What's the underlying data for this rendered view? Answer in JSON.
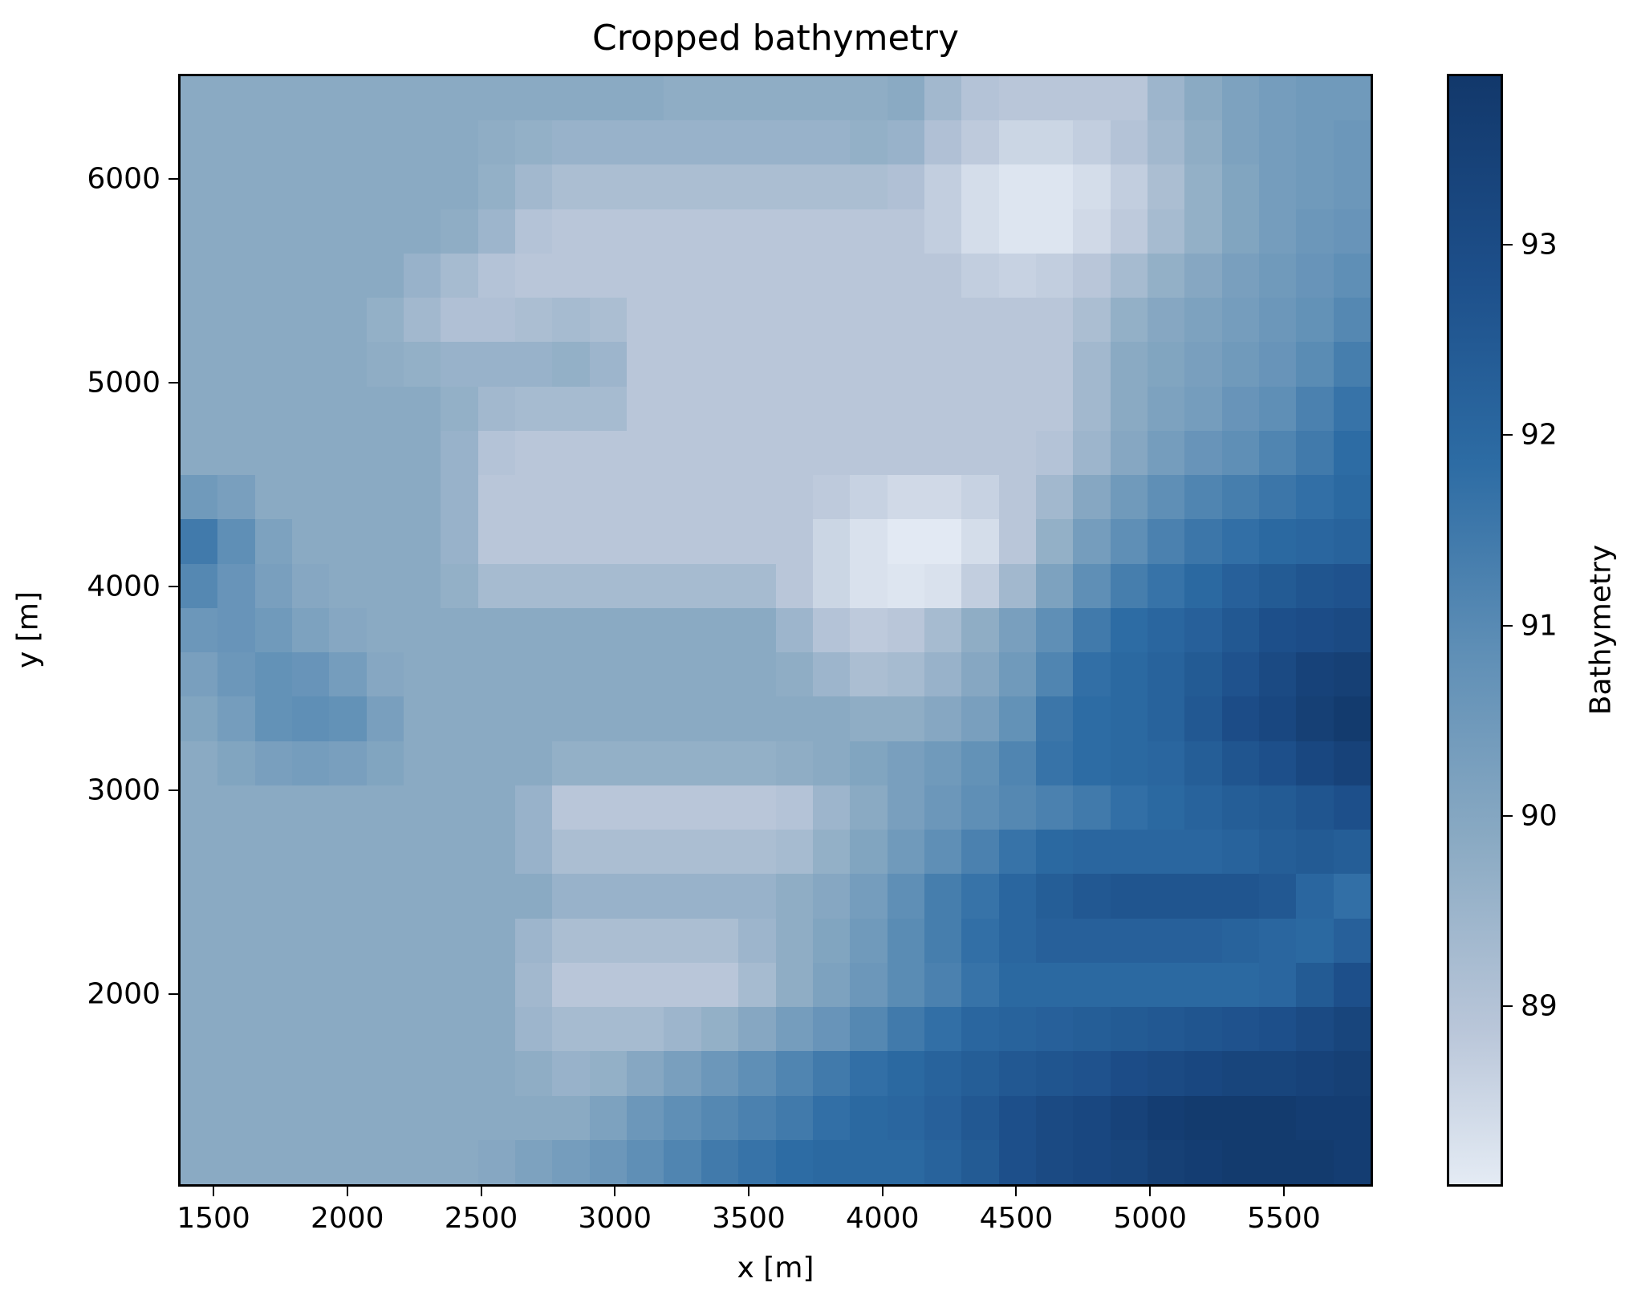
{
  "chart_data": {
    "type": "heatmap",
    "title": "Cropped bathymetry",
    "xlabel": "x [m]",
    "ylabel": "y [m]",
    "colorbar_label": "Bathymetry",
    "xlim": [
      1368,
      5833
    ],
    "ylim": [
      1055,
      6516
    ],
    "x_ticks": [
      1500,
      2000,
      2500,
      3000,
      3500,
      4000,
      4500,
      5000,
      5500
    ],
    "y_ticks": [
      2000,
      3000,
      4000,
      5000,
      6000
    ],
    "colorbar_ticks": [
      89,
      90,
      91,
      92,
      93
    ],
    "colorbar_range": [
      88.05,
      93.9
    ],
    "colormap": [
      {
        "v": 88.05,
        "c": "#e4ebf4"
      },
      {
        "v": 89,
        "c": "#b9c6d9"
      },
      {
        "v": 90,
        "c": "#8aaac3"
      },
      {
        "v": 91,
        "c": "#5f8fb6"
      },
      {
        "v": 92,
        "c": "#2d6ca4"
      },
      {
        "v": 93,
        "c": "#1d4f8a"
      },
      {
        "v": 93.9,
        "c": "#12386b"
      }
    ],
    "grid_note": "downsampled 32 cols x 25 rows; row 0 = top (y max), col 0 = left (x min)",
    "grid": [
      [
        90,
        90,
        90,
        90,
        90,
        90,
        90,
        90,
        90,
        90,
        90,
        90,
        90,
        89.9,
        89.9,
        89.9,
        89.9,
        89.9,
        89.9,
        90,
        89.5,
        89.1,
        89.0,
        89.0,
        89.0,
        89.0,
        89.6,
        90.0,
        90.3,
        90.5,
        90.6,
        90.6
      ],
      [
        90,
        90,
        90,
        90,
        90,
        90,
        90,
        90,
        89.9,
        89.8,
        89.7,
        89.7,
        89.7,
        89.7,
        89.7,
        89.7,
        89.7,
        89.7,
        89.8,
        89.7,
        89.2,
        88.9,
        88.6,
        88.6,
        88.8,
        89.1,
        89.5,
        89.9,
        90.3,
        90.5,
        90.6,
        90.7
      ],
      [
        90,
        90,
        90,
        90,
        90,
        90,
        90,
        90,
        89.8,
        89.5,
        89.3,
        89.3,
        89.3,
        89.3,
        89.3,
        89.3,
        89.3,
        89.3,
        89.3,
        89.2,
        88.8,
        88.4,
        88.2,
        88.2,
        88.4,
        88.8,
        89.3,
        89.8,
        90.2,
        90.5,
        90.6,
        90.7
      ],
      [
        90,
        90,
        90,
        90,
        90,
        90,
        90,
        89.9,
        89.6,
        89.1,
        89.0,
        89.0,
        89.0,
        89.0,
        89.0,
        89.0,
        89.0,
        89.0,
        89.0,
        89.0,
        88.8,
        88.4,
        88.2,
        88.2,
        88.5,
        88.9,
        89.4,
        89.8,
        90.2,
        90.5,
        90.7,
        90.8
      ],
      [
        90,
        90,
        90,
        90,
        90,
        90,
        89.7,
        89.4,
        89.1,
        89.0,
        89.0,
        89.0,
        89.0,
        89.0,
        89.0,
        89.0,
        89.0,
        89.0,
        89.0,
        89.0,
        89.0,
        88.8,
        88.7,
        88.8,
        89.0,
        89.4,
        89.8,
        90.1,
        90.4,
        90.6,
        90.8,
        91.0
      ],
      [
        90,
        90,
        90,
        90,
        90,
        89.8,
        89.5,
        89.2,
        89.2,
        89.3,
        89.4,
        89.3,
        89.0,
        89.0,
        89.0,
        89.0,
        89.0,
        89.0,
        89.0,
        89.0,
        89.0,
        89.0,
        89.0,
        89.0,
        89.3,
        89.8,
        90.1,
        90.3,
        90.5,
        90.7,
        90.9,
        91.2
      ],
      [
        90,
        90,
        90,
        90,
        90,
        89.9,
        89.8,
        89.7,
        89.7,
        89.7,
        89.8,
        89.6,
        89.0,
        89.0,
        89.0,
        89.0,
        89.0,
        89.0,
        89.0,
        89.0,
        89.0,
        89.0,
        89.0,
        89.0,
        89.5,
        90.0,
        90.2,
        90.4,
        90.6,
        90.8,
        91.1,
        91.5
      ],
      [
        90,
        90,
        90,
        90,
        90,
        90,
        90,
        89.8,
        89.5,
        89.4,
        89.4,
        89.4,
        89.0,
        89.0,
        89.0,
        89.0,
        89.0,
        89.0,
        89.0,
        89.0,
        89.0,
        89.0,
        89.0,
        89.0,
        89.5,
        90.0,
        90.3,
        90.5,
        90.8,
        91.0,
        91.4,
        91.8
      ],
      [
        90,
        90,
        90,
        90,
        90,
        90,
        90,
        89.7,
        89.1,
        89.0,
        89.0,
        89.0,
        89.0,
        89.0,
        89.0,
        89.0,
        89.0,
        89.0,
        89.0,
        89.0,
        89.0,
        89.0,
        89.0,
        89.1,
        89.6,
        90.1,
        90.5,
        90.8,
        91.0,
        91.3,
        91.6,
        92.0
      ],
      [
        90.6,
        90.4,
        90,
        90,
        90,
        90,
        90,
        89.7,
        89.0,
        89.0,
        89.0,
        89.0,
        89.0,
        89.0,
        89.0,
        89.0,
        89.0,
        88.9,
        88.7,
        88.5,
        88.5,
        88.7,
        89.0,
        89.5,
        90.1,
        90.6,
        91.0,
        91.3,
        91.5,
        91.7,
        91.9,
        92.1
      ],
      [
        91.6,
        91.0,
        90.3,
        90,
        90,
        90,
        90,
        89.7,
        89.0,
        89.0,
        89.0,
        89.0,
        89.0,
        89.0,
        89.0,
        89.0,
        89.0,
        88.6,
        88.3,
        88.1,
        88.1,
        88.4,
        89.0,
        89.8,
        90.5,
        91.0,
        91.4,
        91.7,
        91.9,
        92.1,
        92.2,
        92.3
      ],
      [
        91.2,
        90.8,
        90.4,
        90.1,
        90,
        90,
        90,
        89.8,
        89.4,
        89.4,
        89.4,
        89.4,
        89.4,
        89.4,
        89.4,
        89.4,
        89.0,
        88.6,
        88.3,
        88.2,
        88.3,
        88.8,
        89.5,
        90.3,
        91.0,
        91.5,
        91.8,
        92.1,
        92.4,
        92.6,
        92.8,
        92.9
      ],
      [
        90.7,
        90.8,
        90.6,
        90.3,
        90.1,
        90,
        90,
        90,
        90,
        90,
        90,
        90,
        90,
        90,
        90,
        90,
        89.6,
        89.1,
        88.9,
        89.0,
        89.4,
        89.9,
        90.4,
        91.0,
        91.6,
        92.0,
        92.2,
        92.4,
        92.7,
        93.0,
        93.1,
        93.2
      ],
      [
        90.4,
        90.7,
        90.9,
        90.8,
        90.5,
        90.1,
        90,
        90,
        90,
        90,
        90,
        90,
        90,
        90,
        90,
        90,
        89.9,
        89.6,
        89.3,
        89.4,
        89.7,
        90.1,
        90.6,
        91.3,
        91.9,
        92.1,
        92.3,
        92.6,
        92.9,
        93.2,
        93.5,
        93.6
      ],
      [
        90.2,
        90.5,
        90.9,
        91.0,
        90.9,
        90.4,
        90,
        90,
        90,
        90,
        90,
        90,
        90,
        90,
        90,
        90,
        90,
        90,
        89.9,
        89.9,
        90.1,
        90.4,
        90.9,
        91.7,
        92.0,
        92.1,
        92.3,
        92.7,
        93.1,
        93.3,
        93.6,
        93.8
      ],
      [
        90,
        90.2,
        90.4,
        90.5,
        90.4,
        90.2,
        90,
        90,
        90,
        90,
        89.8,
        89.8,
        89.8,
        89.8,
        89.8,
        89.8,
        89.9,
        90,
        90.2,
        90.4,
        90.6,
        90.9,
        91.3,
        91.8,
        92.0,
        92.1,
        92.2,
        92.5,
        92.8,
        93.0,
        93.3,
        93.5
      ],
      [
        90,
        90,
        90,
        90,
        90,
        90,
        90,
        90,
        90,
        89.7,
        89.0,
        89.0,
        89.0,
        89.0,
        89.0,
        89.0,
        89.1,
        89.6,
        90.0,
        90.4,
        90.7,
        91.0,
        91.2,
        91.4,
        91.6,
        91.9,
        92.1,
        92.3,
        92.5,
        92.6,
        92.8,
        93.0
      ],
      [
        90,
        90,
        90,
        90,
        90,
        90,
        90,
        90,
        90,
        89.7,
        89.3,
        89.3,
        89.3,
        89.3,
        89.3,
        89.3,
        89.4,
        89.8,
        90.2,
        90.6,
        91.0,
        91.4,
        91.8,
        92.1,
        92.2,
        92.2,
        92.2,
        92.2,
        92.3,
        92.5,
        92.6,
        92.5
      ],
      [
        90,
        90,
        90,
        90,
        90,
        90,
        90,
        90,
        90,
        90,
        89.7,
        89.7,
        89.7,
        89.7,
        89.7,
        89.7,
        89.9,
        90.1,
        90.5,
        91.0,
        91.5,
        91.8,
        92.2,
        92.5,
        92.7,
        92.8,
        92.8,
        92.8,
        92.8,
        92.7,
        92.2,
        91.9
      ],
      [
        90,
        90,
        90,
        90,
        90,
        90,
        90,
        90,
        90,
        89.6,
        89.3,
        89.3,
        89.3,
        89.3,
        89.3,
        89.6,
        89.9,
        90.2,
        90.6,
        91.1,
        91.5,
        91.9,
        92.2,
        92.4,
        92.4,
        92.4,
        92.4,
        92.4,
        92.3,
        92.2,
        92.1,
        92.4
      ],
      [
        90,
        90,
        90,
        90,
        90,
        90,
        90,
        90,
        90,
        89.5,
        89.0,
        89.0,
        89.0,
        89.0,
        89.0,
        89.4,
        89.9,
        90.3,
        90.7,
        91.1,
        91.4,
        91.8,
        92.1,
        92.1,
        92.1,
        92.1,
        92.1,
        92.1,
        92.1,
        92.2,
        92.6,
        93.0
      ],
      [
        90,
        90,
        90,
        90,
        90,
        90,
        90,
        90,
        90,
        89.6,
        89.4,
        89.4,
        89.4,
        89.6,
        89.8,
        90.1,
        90.5,
        90.8,
        91.2,
        91.6,
        91.9,
        92.2,
        92.3,
        92.4,
        92.5,
        92.6,
        92.7,
        92.8,
        92.9,
        93.0,
        93.2,
        93.4
      ],
      [
        90,
        90,
        90,
        90,
        90,
        90,
        90,
        90,
        90,
        89.9,
        89.7,
        89.8,
        90.1,
        90.4,
        90.7,
        91.0,
        91.3,
        91.6,
        91.9,
        92.1,
        92.3,
        92.5,
        92.7,
        92.8,
        92.9,
        93.1,
        93.2,
        93.3,
        93.4,
        93.4,
        93.5,
        93.6
      ],
      [
        90,
        90,
        90,
        90,
        90,
        90,
        90,
        90,
        90,
        90,
        90,
        90.3,
        90.7,
        91.0,
        91.2,
        91.4,
        91.6,
        91.9,
        92.1,
        92.2,
        92.4,
        92.7,
        93.0,
        93.2,
        93.3,
        93.5,
        93.7,
        93.8,
        93.8,
        93.8,
        93.7,
        93.7
      ],
      [
        90,
        90,
        90,
        90,
        90,
        90,
        90,
        90,
        90.1,
        90.3,
        90.5,
        90.7,
        91.0,
        91.3,
        91.6,
        91.8,
        92.0,
        92.1,
        92.1,
        92.1,
        92.3,
        92.6,
        93.0,
        93.2,
        93.3,
        93.4,
        93.6,
        93.7,
        93.8,
        93.8,
        93.8,
        93.7
      ]
    ]
  },
  "labels": {
    "title": "Cropped bathymetry",
    "xlabel": "x [m]",
    "ylabel": "y [m]",
    "colorbar_label": "Bathymetry",
    "x_ticks": [
      "1500",
      "2000",
      "2500",
      "3000",
      "3500",
      "4000",
      "4500",
      "5000",
      "5500"
    ],
    "y_ticks": [
      "2000",
      "3000",
      "4000",
      "5000",
      "6000"
    ],
    "c_ticks": [
      "89",
      "90",
      "91",
      "92",
      "93"
    ]
  }
}
